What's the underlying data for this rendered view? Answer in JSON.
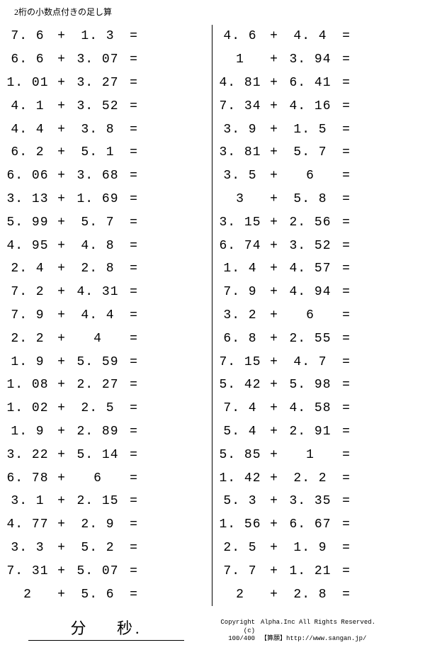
{
  "title": "2桁の小数点付きの足し算",
  "leftColumn": [
    {
      "a": "7.6",
      "b": "1.3"
    },
    {
      "a": "6.6",
      "b": "3.07"
    },
    {
      "a": "1.01",
      "b": "3.27"
    },
    {
      "a": "4.1",
      "b": "3.52"
    },
    {
      "a": "4.4",
      "b": "3.8"
    },
    {
      "a": "6.2",
      "b": "5.1"
    },
    {
      "a": "6.06",
      "b": "3.68"
    },
    {
      "a": "3.13",
      "b": "1.69"
    },
    {
      "a": "5.99",
      "b": "5.7"
    },
    {
      "a": "4.95",
      "b": "4.8"
    },
    {
      "a": "2.4",
      "b": "2.8"
    },
    {
      "a": "7.2",
      "b": "4.31"
    },
    {
      "a": "7.9",
      "b": "4.4"
    },
    {
      "a": "2.2",
      "b": "4"
    },
    {
      "a": "1.9",
      "b": "5.59"
    },
    {
      "a": "1.08",
      "b": "2.27"
    },
    {
      "a": "1.02",
      "b": "2.5"
    },
    {
      "a": "1.9",
      "b": "2.89"
    },
    {
      "a": "3.22",
      "b": "5.14"
    },
    {
      "a": "6.78",
      "b": "6"
    },
    {
      "a": "3.1",
      "b": "2.15"
    },
    {
      "a": "4.77",
      "b": "2.9"
    },
    {
      "a": "3.3",
      "b": "5.2"
    },
    {
      "a": "7.31",
      "b": "5.07"
    },
    {
      "a": "2",
      "b": "5.6"
    }
  ],
  "rightColumn": [
    {
      "a": "4.6",
      "b": "4.4"
    },
    {
      "a": "1",
      "b": "3.94"
    },
    {
      "a": "4.81",
      "b": "6.41"
    },
    {
      "a": "7.34",
      "b": "4.16"
    },
    {
      "a": "3.9",
      "b": "1.5"
    },
    {
      "a": "3.81",
      "b": "5.7"
    },
    {
      "a": "3.5",
      "b": "6"
    },
    {
      "a": "3",
      "b": "5.8"
    },
    {
      "a": "3.15",
      "b": "2.56"
    },
    {
      "a": "6.74",
      "b": "3.52"
    },
    {
      "a": "1.4",
      "b": "4.57"
    },
    {
      "a": "7.9",
      "b": "4.94"
    },
    {
      "a": "3.2",
      "b": "6"
    },
    {
      "a": "6.8",
      "b": "2.55"
    },
    {
      "a": "7.15",
      "b": "4.7"
    },
    {
      "a": "5.42",
      "b": "5.98"
    },
    {
      "a": "7.4",
      "b": "4.58"
    },
    {
      "a": "5.4",
      "b": "2.91"
    },
    {
      "a": "5.85",
      "b": "1"
    },
    {
      "a": "1.42",
      "b": "2.2"
    },
    {
      "a": "5.3",
      "b": "3.35"
    },
    {
      "a": "1.56",
      "b": "6.67"
    },
    {
      "a": "2.5",
      "b": "1.9"
    },
    {
      "a": "7.7",
      "b": "1.21"
    },
    {
      "a": "2",
      "b": "2.8"
    }
  ],
  "symbols": {
    "plus": "+",
    "equals": "="
  },
  "timer": {
    "minute": "分",
    "second": "秒."
  },
  "footer": {
    "copyright": "Copyright (c)",
    "company": "Alpha.Inc All Rights Reserved.",
    "pageCount": "100/400",
    "siteLabel": "【算願】",
    "siteUrl": "http://www.sangan.jp/"
  },
  "style": {
    "textColor": "#000000",
    "background": "#ffffff",
    "fontSizeBody": 18,
    "fontSizeHeader": 12,
    "fontSizeFooter": 9,
    "rowHeight": 32.8
  }
}
